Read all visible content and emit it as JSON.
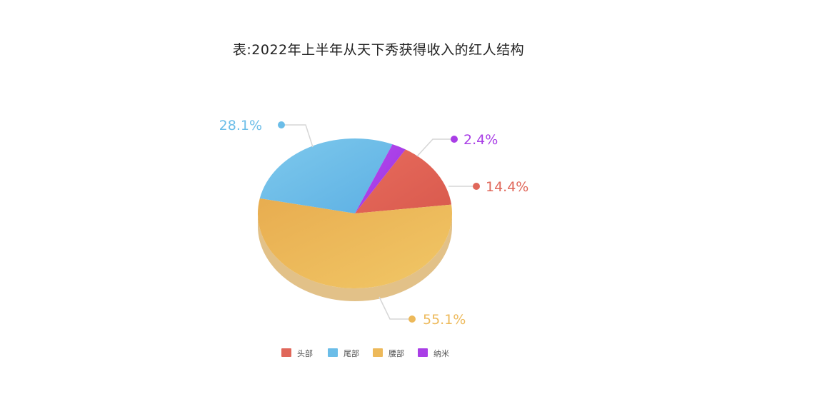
{
  "chart_data": {
    "type": "pie",
    "title": "表:2022年上半年从天下秀获得收入的红人结构",
    "legend_position": "bottom",
    "slices": [
      {
        "name": "头部",
        "value": 14.4,
        "label": "14.4%",
        "color": "#e0675a"
      },
      {
        "name": "尾部",
        "value": 28.1,
        "label": "28.1%",
        "color": "#6bbde8"
      },
      {
        "name": "腰部",
        "value": 55.1,
        "label": "55.1%",
        "color": "#edb95a"
      },
      {
        "name": "纳米",
        "value": 2.4,
        "label": "2.4%",
        "color": "#a93ee6"
      }
    ]
  }
}
